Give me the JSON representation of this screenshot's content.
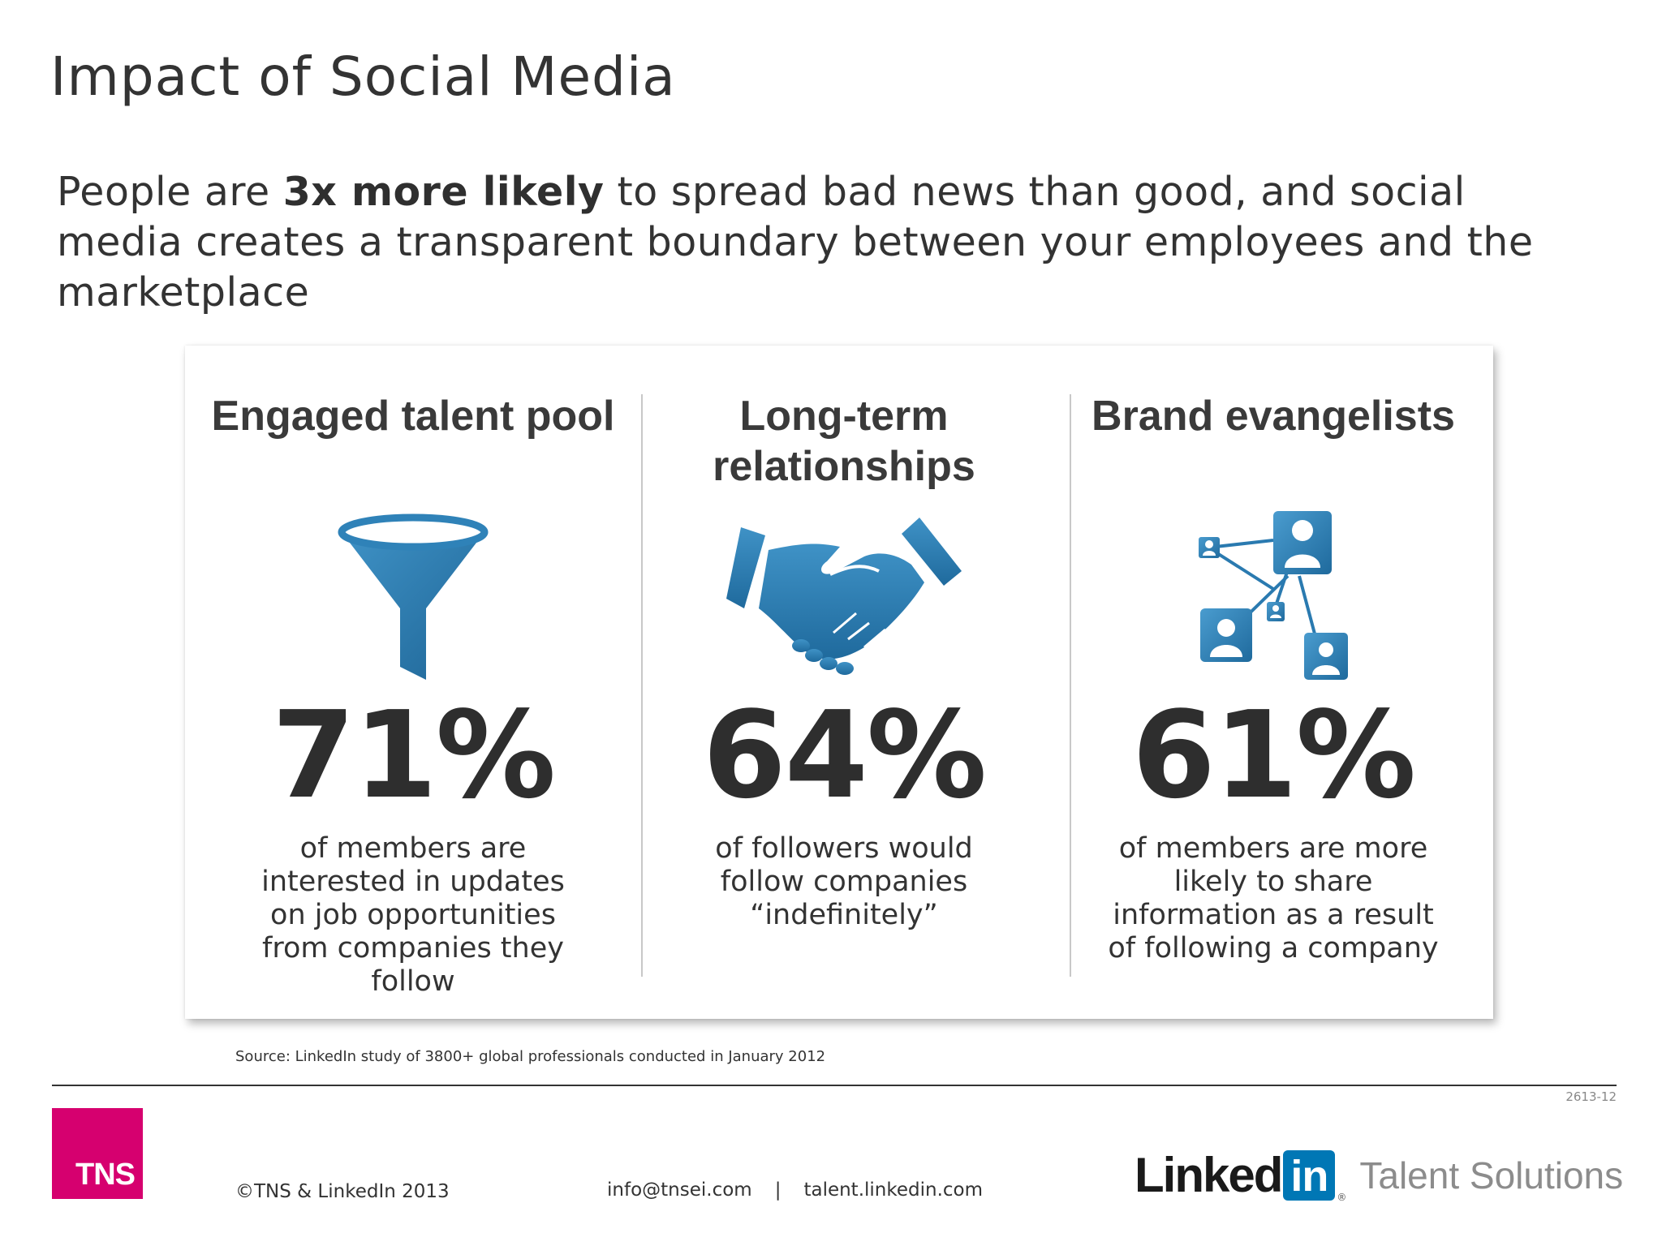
{
  "slide": {
    "title": "Impact of Social Media",
    "subtitle_pre": "People are ",
    "subtitle_bold": "3x more likely",
    "subtitle_post": " to spread bad news than good, and social media creates a transparent boundary between your employees and the marketplace"
  },
  "stats": [
    {
      "heading": "Engaged talent pool",
      "icon": "funnel-icon",
      "value": "71%",
      "description": "of members are interested in updates on job opportunities from companies they follow"
    },
    {
      "heading": "Long-term relationships",
      "icon": "handshake-icon",
      "value": "64%",
      "description": "of followers would follow companies “indefinitely”"
    },
    {
      "heading": "Brand evangelists",
      "icon": "network-icon",
      "value": "61%",
      "description": "of members are more likely to share information as a result of following a company"
    }
  ],
  "footer": {
    "source": "Source: LinkedIn study of 3800+ global professionals conducted in January 2012",
    "ref_code": "2613-12",
    "tns_logo": "TNS",
    "copyright": "©TNS & LinkedIn 2013",
    "email": "info@tnsei.com",
    "separator": "|",
    "website": "talent.linkedin.com",
    "linkedin_word": "Linked",
    "linkedin_in": "in",
    "linkedin_reg": "®",
    "linkedin_product": "Talent Solutions"
  },
  "colors": {
    "icon_blue": "#2a7ab0",
    "tns_magenta": "#d6006f",
    "linkedin_blue": "#0077b5"
  }
}
